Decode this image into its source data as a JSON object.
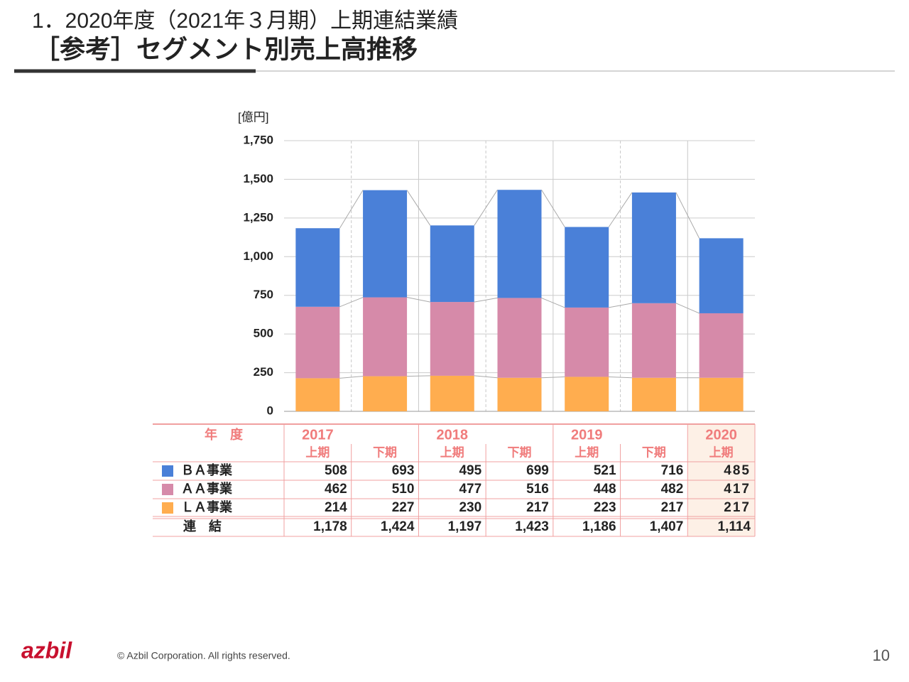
{
  "header": {
    "title": "1．2020年度（2021年３月期）上期連結業績",
    "subtitle": "［参考］セグメント別売上高推移"
  },
  "chart_data": {
    "type": "bar",
    "stacked": true,
    "y_label": "[億円]",
    "years": [
      "2017",
      "2018",
      "2019",
      "2020"
    ],
    "categories": [
      "上期",
      "下期",
      "上期",
      "下期",
      "上期",
      "下期",
      "上期"
    ],
    "series": [
      {
        "name": "ＢＡ事業",
        "color": "#4a80d8",
        "values": [
          508,
          693,
          495,
          699,
          521,
          716,
          485
        ]
      },
      {
        "name": "ＡＡ事業",
        "color": "#d68aa9",
        "values": [
          462,
          510,
          477,
          516,
          448,
          482,
          417
        ]
      },
      {
        "name": "ＬＡ事業",
        "color": "#ffad4f",
        "values": [
          214,
          227,
          230,
          217,
          223,
          217,
          217
        ]
      }
    ],
    "ylim": [
      0,
      1750
    ],
    "yticks": [
      0,
      250,
      500,
      750,
      {
        "value": 1000,
        "label": "1,000"
      },
      {
        "value": 1250,
        "label": "1,250"
      },
      {
        "value": 1500,
        "label": "1,500"
      },
      {
        "value": 1750,
        "label": "1,750"
      }
    ],
    "grid": true
  },
  "table": {
    "year_header": "年　度",
    "total_name": "連　結",
    "totals": [
      "1,178",
      "1,424",
      "1,197",
      "1,423",
      "1,186",
      "1,407",
      "1,114"
    ]
  },
  "footer": {
    "logo": "azbil",
    "copyright": "© Azbil Corporation. All rights reserved.",
    "page": "10"
  }
}
